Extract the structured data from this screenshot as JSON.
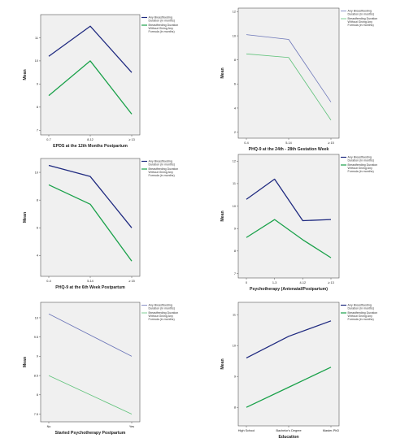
{
  "colors": {
    "any": "#1f2a80",
    "without_formula": "#1aa14a",
    "any_light": "#6c76b8",
    "without_formula_light": "#5fc27a"
  },
  "legend_labels": {
    "any": [
      "Any Breastfeeding",
      "Duration (in months)"
    ],
    "without_formula": [
      "Breastfeeding Duration",
      "Without Giving Any",
      "Formula (in months)"
    ]
  },
  "chart_data": [
    {
      "type": "line",
      "xlabel": "EPDS at the 12th Months Postpartum",
      "ylabel": "Mean",
      "categories": [
        "0-7",
        "8-12",
        "≥ 13"
      ],
      "ylim": [
        6.8,
        12.0
      ],
      "yticks": [
        7,
        8,
        9,
        10,
        11
      ],
      "grid": false,
      "legend": "top-right",
      "series": [
        {
          "name": "Any Breastfeeding Duration (in months)",
          "values": [
            10.2,
            11.5,
            9.5
          ],
          "style": "bold"
        },
        {
          "name": "Breastfeeding Duration Without Giving Any Formula (in months)",
          "values": [
            8.5,
            10.0,
            7.7
          ],
          "style": "bold"
        }
      ]
    },
    {
      "type": "line",
      "xlabel": "PHQ-9 at the 24th - 28th Gestation Week",
      "ylabel": "Mean",
      "categories": [
        "0-4",
        "5-14",
        "≥ 15"
      ],
      "ylim": [
        1.5,
        12.3
      ],
      "yticks": [
        2,
        4,
        6,
        8,
        10,
        12
      ],
      "grid": false,
      "legend": "top-right",
      "series": [
        {
          "name": "Any Breastfeeding Duration (in months)",
          "values": [
            10.1,
            9.7,
            4.5
          ],
          "style": "light"
        },
        {
          "name": "Breastfeeding Duration Without Giving Any Formula (in months)",
          "values": [
            8.5,
            8.2,
            3.0
          ],
          "style": "light"
        }
      ]
    },
    {
      "type": "line",
      "xlabel": "PHQ-9 at the 6th Week Postpartum",
      "ylabel": "Mean",
      "categories": [
        "0-4",
        "5-14",
        "≥ 15"
      ],
      "ylim": [
        2.5,
        11.0
      ],
      "yticks": [
        4,
        6,
        8,
        10
      ],
      "grid": false,
      "legend": "top-right",
      "series": [
        {
          "name": "Any Breastfeeding Duration (in months)",
          "values": [
            10.5,
            9.7,
            6.0
          ],
          "style": "bold"
        },
        {
          "name": "Breastfeeding Duration Without Giving Any Formula (in months)",
          "values": [
            9.1,
            7.7,
            3.6
          ],
          "style": "bold"
        }
      ]
    },
    {
      "type": "line",
      "xlabel": "Psychotherapy (Antenatal/Postpartum)",
      "ylabel": "Mean",
      "categories": [
        "0",
        "1-3",
        "4-12",
        "≥ 13"
      ],
      "ylim": [
        6.8,
        12.3
      ],
      "yticks": [
        7,
        8,
        9,
        10,
        11,
        12
      ],
      "grid": false,
      "legend": "top-right",
      "series": [
        {
          "name": "Any Breastfeeding Duration (in months)",
          "values": [
            10.3,
            11.2,
            9.35,
            9.4
          ],
          "style": "bold"
        },
        {
          "name": "Breastfeeding Duration Without Giving Any Formula (in months)",
          "values": [
            8.6,
            9.4,
            8.5,
            7.7
          ],
          "style": "bold"
        }
      ]
    },
    {
      "type": "line",
      "xlabel": "Started Psychotherapy Postpartum",
      "ylabel": "Mean",
      "categories": [
        "No",
        "Yes"
      ],
      "ylim": [
        7.3,
        10.4
      ],
      "yticks": [
        7.5,
        8.0,
        8.5,
        9.0,
        9.5,
        10.0
      ],
      "grid": false,
      "legend": "top-right",
      "series": [
        {
          "name": "Any Breastfeeding Duration (in months)",
          "values": [
            10.1,
            9.0
          ],
          "style": "light"
        },
        {
          "name": "Breastfeeding Duration Without Giving Any Formula (in months)",
          "values": [
            8.5,
            7.5
          ],
          "style": "light"
        }
      ]
    },
    {
      "type": "line",
      "xlabel": "Education",
      "ylabel": "Mean",
      "categories": [
        "High School",
        "Bachelor's Degree",
        "Master-PhD"
      ],
      "ylim": [
        7.4,
        11.4
      ],
      "yticks": [
        8,
        9,
        10,
        11
      ],
      "grid": false,
      "legend": "top-right",
      "series": [
        {
          "name": "Any Breastfeeding Duration (in months)",
          "values": [
            9.6,
            10.3,
            10.8
          ],
          "style": "bold"
        },
        {
          "name": "Breastfeeding Duration Without Giving Any Formula (in months)",
          "values": [
            8.0,
            8.65,
            9.3
          ],
          "style": "bold"
        }
      ]
    }
  ]
}
